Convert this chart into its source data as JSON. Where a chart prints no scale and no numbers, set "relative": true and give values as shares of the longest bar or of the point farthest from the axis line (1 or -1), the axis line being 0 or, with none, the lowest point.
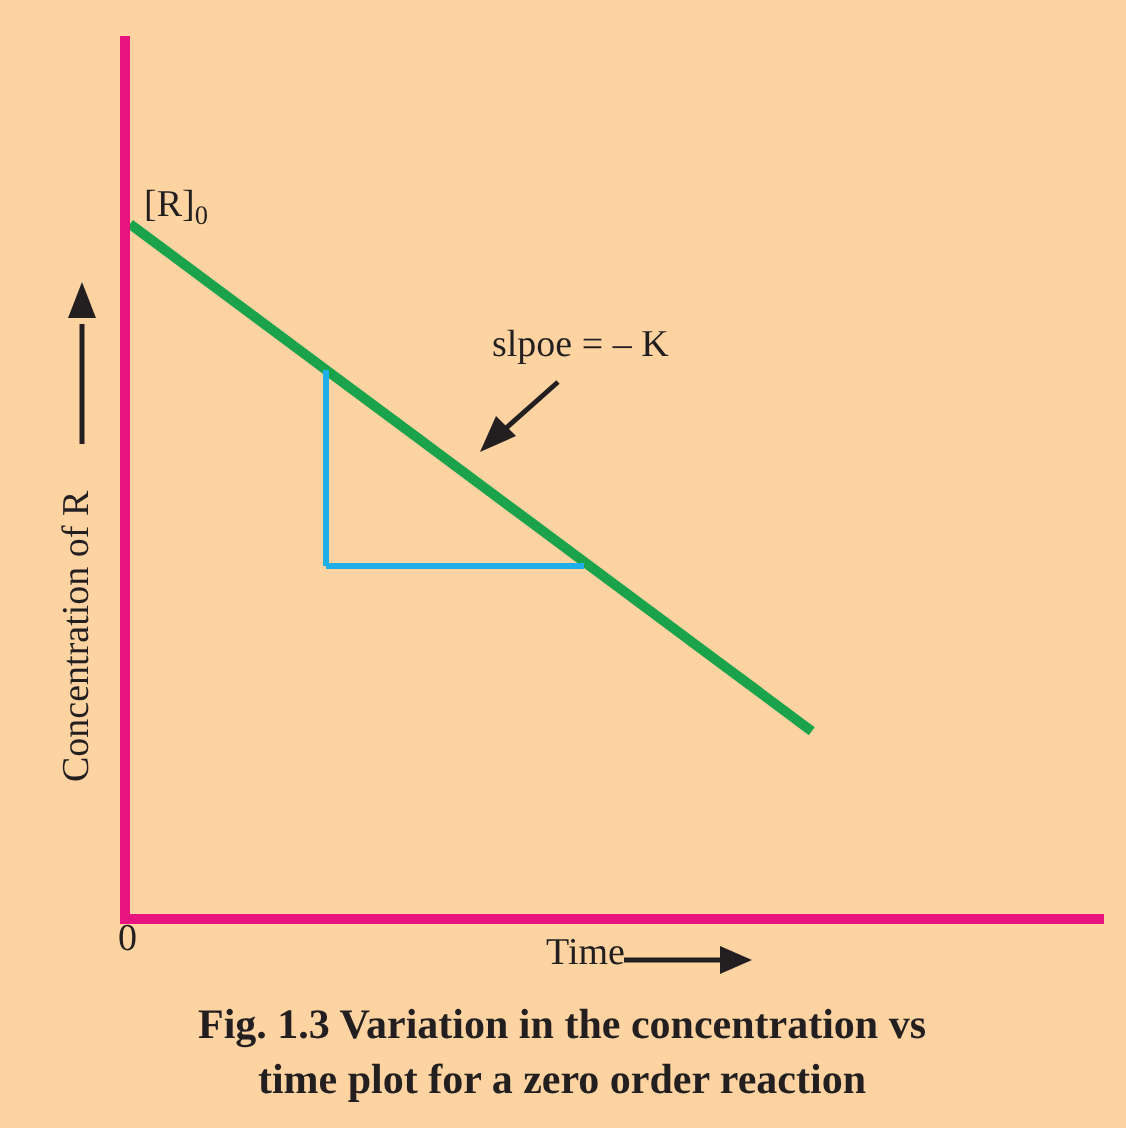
{
  "chart_data": {
    "type": "line",
    "relative": true,
    "xlabel": "Time",
    "ylabel": "Concentration of R",
    "categories": [
      null,
      null,
      null,
      null,
      null,
      null,
      null,
      null,
      null,
      null,
      null
    ],
    "series": [
      {
        "color": "#1aa34a",
        "values": [
          1,
          0.895,
          0.79,
          0.685,
          0.58,
          0.475,
          0.37,
          0.265,
          null,
          null,
          null
        ]
      }
    ],
    "annotations": [
      "[R]$_{0}$",
      "slpoe = – K",
      "0",
      "Fig. 1.3 Variation in the concentration vs\ntime plot for a zero order reaction"
    ],
    "grid": false,
    "marker": "none",
    "line_style": "solid"
  }
}
